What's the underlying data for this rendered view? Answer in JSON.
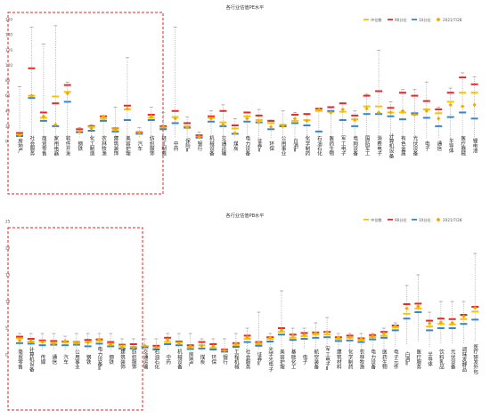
{
  "chart_data": [
    {
      "type": "boxplot",
      "title": "各行业估值PE水平",
      "legend": [
        {
          "name": "中位数",
          "color": "#f5c400",
          "marker": "bar"
        },
        {
          "name": "90分位",
          "color": "#e8292a",
          "marker": "bar"
        },
        {
          "name": "10分位",
          "color": "#3a85c8",
          "marker": "bar"
        },
        {
          "name": "2021/7/28",
          "color": "#f5a800",
          "marker": "diamond"
        }
      ],
      "legend_position": "top-right",
      "ylim": [
        0,
        160
      ],
      "yticks": [
        0,
        20,
        40,
        60,
        80,
        100,
        120,
        140,
        160
      ],
      "categories": [
        "房地产",
        "社会服务",
        "商贸零售",
        "家用电器",
        "软件开发",
        "钢铁",
        "化工制造",
        "农林牧渔",
        "建筑装饰",
        "美容护理",
        "汽车",
        "纺织服饰",
        "轻工制造",
        "中药",
        "保险Ⅱ",
        "银行",
        "机械设备",
        "交通运输",
        "煤炭",
        "电力设备",
        "证券Ⅱ",
        "环保",
        "公用事业",
        "白酒Ⅱ",
        "化学制药",
        "石油石化",
        "医药生物",
        "军工电子",
        "电网设备",
        "国防军工",
        "消费电子",
        "计算机设备",
        "有色金属",
        "光伏设备",
        "电子",
        "通信",
        "半导体",
        "医疗器械",
        "锂电池"
      ],
      "highlight_range": [
        "房地产",
        "中药"
      ],
      "series": {
        "max": [
          72,
          150,
          128,
          152,
          78,
          18,
          22,
          28,
          45,
          110,
          18,
          45,
          38,
          150,
          32,
          12,
          40,
          48,
          30,
          38,
          42,
          28,
          40,
          38,
          35,
          44,
          44,
          50,
          40,
          62,
          120,
          52,
          68,
          68,
          78,
          45,
          70,
          90,
          85
        ],
        "p90": [
          11,
          96,
          38,
          50,
          74,
          16,
          20,
          33,
          17,
          47,
          12,
          35,
          20,
          40,
          24,
          8,
          33,
          40,
          21,
          38,
          34,
          27,
          20,
          35,
          36,
          43,
          45,
          50,
          34,
          60,
          66,
          44,
          64,
          60,
          53,
          42,
          64,
          84,
          75
        ],
        "median": [
          9,
          60,
          31,
          59,
          65,
          13,
          19,
          30,
          16,
          42,
          11,
          31,
          18,
          32,
          20,
          6,
          31,
          25,
          17,
          33,
          28,
          24,
          22,
          27,
          28,
          40,
          39,
          39,
          29,
          46,
          46,
          38,
          38,
          35,
          42,
          37,
          52,
          64,
          64
        ],
        "p10": [
          7,
          57,
          27,
          20,
          52,
          12,
          14,
          27,
          13,
          28,
          10,
          28,
          16,
          24,
          18,
          5,
          26,
          20,
          10,
          26,
          25,
          16,
          20,
          24,
          21,
          13,
          40,
          28,
          20,
          36,
          36,
          33,
          29,
          37,
          31,
          20,
          32,
          38,
          30
        ],
        "min": [
          5,
          4,
          5,
          4,
          4,
          4,
          4,
          4,
          4,
          4,
          4,
          4,
          4,
          4,
          4,
          3,
          4,
          4,
          4,
          4,
          4,
          4,
          4,
          4,
          4,
          4,
          4,
          4,
          4,
          4,
          4,
          4,
          4,
          4,
          4,
          4,
          4,
          4,
          4
        ],
        "current": [
          8,
          60,
          33,
          22,
          63,
          13,
          17,
          33,
          15,
          43,
          11,
          33,
          19,
          30,
          18,
          6,
          30,
          22,
          11,
          30,
          25,
          19,
          20,
          30,
          27,
          42,
          38,
          42,
          28,
          43,
          38,
          38,
          40,
          35,
          40,
          30,
          48,
          46,
          48
        ]
      }
    },
    {
      "type": "boxplot",
      "title": "各行业估值PB水平",
      "legend": [
        {
          "name": "中位数",
          "color": "#f5c400",
          "marker": "bar"
        },
        {
          "name": "90分位",
          "color": "#e8292a",
          "marker": "bar"
        },
        {
          "name": "10分位",
          "color": "#3a85c8",
          "marker": "bar"
        },
        {
          "name": "2021/7/28",
          "color": "#f5a800",
          "marker": "diamond"
        }
      ],
      "legend_position": "top-right",
      "ylim": [
        0,
        25
      ],
      "yticks": [
        0,
        5,
        10,
        15,
        20,
        25
      ],
      "categories": [
        "商贸零售",
        "计算机设备",
        "传媒",
        "通信",
        "汽车",
        "公用事业",
        "钢铁",
        "电力设备Ⅱ",
        "钢铁",
        "建筑装饰",
        "纺织服饰",
        "交通运输",
        "石油石化",
        "中药",
        "机械设备",
        "房地产",
        "煤炭",
        "环保",
        "银行",
        "工程机械",
        "社会服务",
        "证券Ⅱ",
        "光学光电子",
        "美容护理",
        "基础化工",
        "电子",
        "航空装备",
        "军工电子Ⅱ",
        "建筑材料",
        "化学制药",
        "农林牧渔",
        "电力设备",
        "医药生物",
        "电子元件",
        "白酒Ⅱ",
        "医疗服务",
        "半导体",
        "饮料乳品",
        "光伏设备",
        "调味发酵品",
        "医疗研发外包"
      ],
      "highlight_range": [
        "商贸零售",
        "石油石化"
      ],
      "series": {
        "max": [
          4,
          4,
          4,
          4,
          3.5,
          4,
          4,
          4,
          4,
          3,
          3,
          3,
          3,
          4,
          4,
          4,
          3,
          3,
          3,
          4,
          5,
          8,
          4,
          12,
          5,
          5,
          6,
          7,
          4,
          4,
          4,
          4,
          5,
          6,
          13,
          15,
          8,
          10,
          10,
          10,
          19
        ],
        "p90": [
          3.4,
          3.0,
          2.7,
          2.6,
          2.5,
          2.4,
          2.8,
          2.9,
          2.4,
          1.9,
          2.0,
          1.6,
          1.7,
          3.2,
          2.5,
          1.8,
          2.4,
          2.0,
          1.0,
          2.2,
          3.6,
          2.4,
          3.3,
          5.0,
          3.8,
          4.1,
          4.2,
          4.3,
          3.3,
          3.6,
          3.1,
          3.7,
          4.3,
          5.5,
          9.5,
          9.6,
          6.4,
          6.8,
          6.7,
          7.5,
          9.0
        ],
        "median": [
          3.1,
          2.5,
          2.5,
          2.3,
          2.3,
          2.3,
          2.4,
          2.6,
          2.1,
          1.7,
          1.5,
          1.6,
          1.3,
          2.4,
          2.3,
          1.5,
          1.8,
          1.3,
          0.8,
          1.8,
          3.0,
          2.0,
          3.0,
          4.3,
          3.2,
          3.5,
          3.8,
          3.8,
          3.0,
          3.2,
          2.8,
          3.3,
          3.6,
          5.1,
          7.7,
          8.7,
          5.3,
          5.8,
          5.7,
          6.7,
          8.1
        ],
        "p10": [
          2.2,
          2.1,
          1.8,
          1.9,
          1.8,
          1.9,
          1.6,
          2.1,
          1.6,
          1.2,
          1.2,
          1.4,
          1.0,
          2.0,
          1.8,
          1.1,
          1.2,
          1.0,
          0.6,
          1.5,
          2.4,
          1.7,
          2.5,
          3.8,
          2.8,
          3.0,
          3.2,
          3.3,
          2.6,
          2.7,
          2.4,
          2.9,
          3.2,
          4.6,
          6.8,
          8.0,
          4.6,
          5.0,
          5.0,
          5.8,
          6.6
        ],
        "min": [
          0.8,
          0.8,
          0.8,
          0.8,
          0.8,
          0.8,
          0.8,
          0.8,
          0.7,
          0.6,
          0.6,
          0.6,
          0.5,
          0.8,
          0.8,
          0.6,
          0.6,
          0.6,
          0.4,
          0.6,
          1.0,
          0.8,
          1.0,
          1.5,
          1.0,
          1.2,
          1.4,
          1.5,
          1.0,
          1.0,
          1.0,
          1.0,
          1.2,
          1.5,
          2.0,
          2.5,
          1.5,
          2.0,
          2.0,
          2.0,
          2.5
        ],
        "current": [
          2.7,
          2.6,
          2.4,
          2.1,
          2.6,
          2.2,
          2.3,
          2.9,
          1.9,
          1.4,
          1.4,
          1.7,
          1.4,
          2.8,
          2.2,
          1.6,
          1.7,
          1.6,
          0.8,
          2.1,
          3.3,
          2.3,
          3.2,
          4.6,
          3.6,
          3.8,
          4.1,
          4.3,
          3.3,
          3.3,
          3.0,
          3.5,
          4.0,
          5.4,
          8.7,
          9.1,
          5.9,
          6.1,
          6.0,
          7.2,
          8.8
        ]
      }
    }
  ]
}
